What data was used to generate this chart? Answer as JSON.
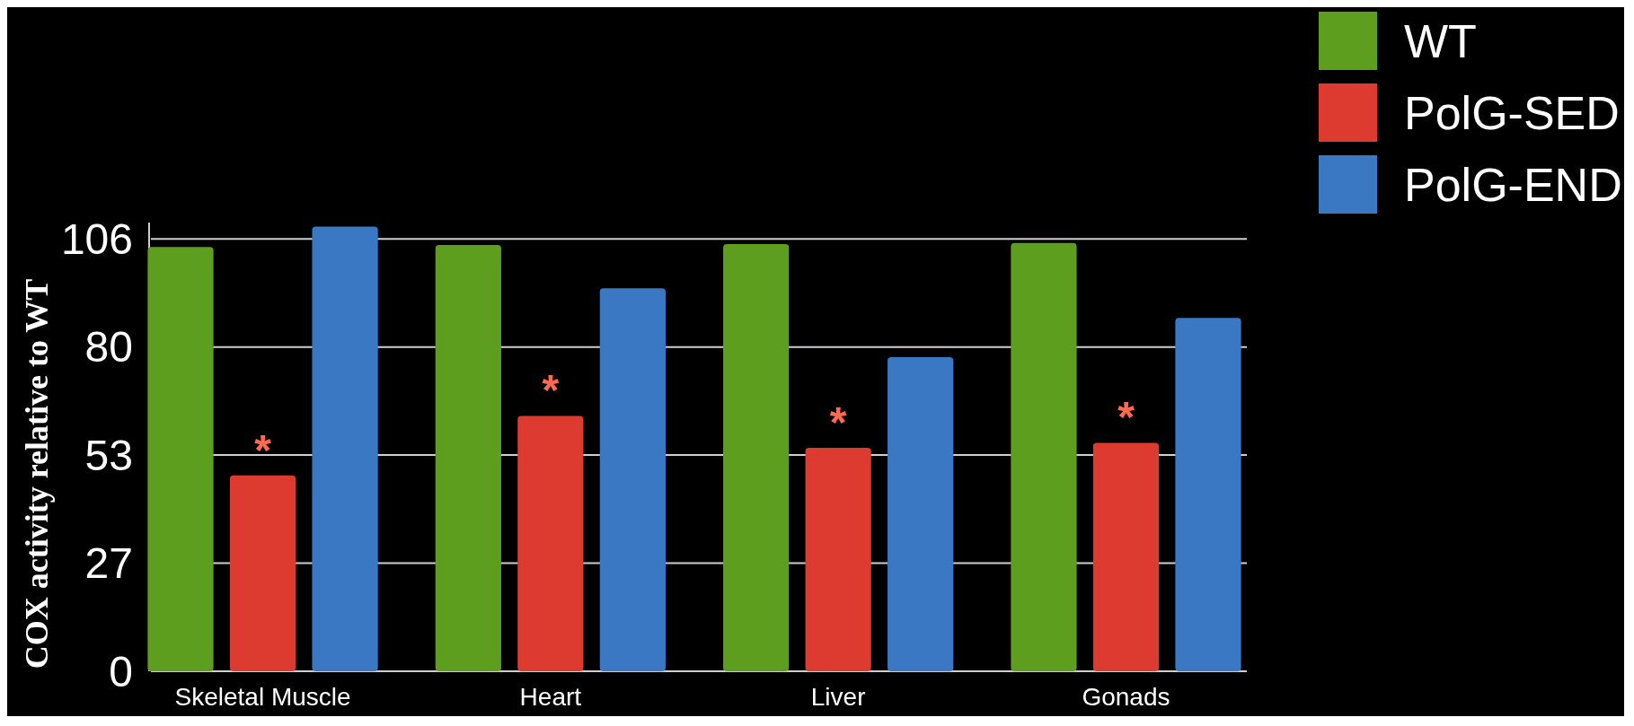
{
  "chart_data": {
    "type": "bar",
    "ylabel": "COX activity relative to WT",
    "categories": [
      "Skeletal Muscle",
      "Heart",
      "Liver",
      "Gonads"
    ],
    "series": [
      {
        "name": "WT",
        "color": "#5e9e1e",
        "values": [
          104,
          104.5,
          104.7,
          105
        ]
      },
      {
        "name": "PolG-SED",
        "color": "#dd3b30",
        "values": [
          48,
          62.6,
          54.8,
          56
        ]
      },
      {
        "name": "PolG-END",
        "color": "#3a78c4",
        "values": [
          109,
          93.9,
          77,
          86.6
        ]
      }
    ],
    "ylim": [
      0,
      110
    ],
    "yticks": [
      0,
      {
        "value": 26.5,
        "label": "27"
      },
      53,
      {
        "value": 79.5,
        "label": "80"
      },
      106
    ],
    "grid": "y",
    "legend": "top right",
    "annotations": [
      {
        "text": "*",
        "x": "Skeletal Muscle",
        "y": 48
      },
      {
        "text": "*",
        "x": "Heart",
        "y": 62.6
      },
      {
        "text": "*",
        "x": "Liver",
        "y": 54.8
      },
      {
        "text": "*",
        "x": "Gonads",
        "y": 56
      }
    ]
  }
}
